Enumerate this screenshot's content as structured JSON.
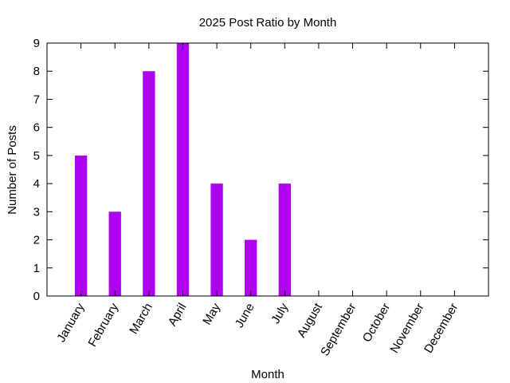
{
  "chart_data": {
    "type": "bar",
    "title": "2025 Post Ratio by Month",
    "xlabel": "Month",
    "ylabel": "Number of Posts",
    "categories": [
      "January",
      "February",
      "March",
      "April",
      "May",
      "June",
      "July",
      "August",
      "September",
      "October",
      "November",
      "December"
    ],
    "values": [
      5,
      3,
      8,
      9,
      4,
      2,
      4,
      0,
      0,
      0,
      0,
      0
    ],
    "ylim": [
      0,
      9
    ],
    "yticks": [
      0,
      1,
      2,
      3,
      4,
      5,
      6,
      7,
      8,
      9
    ],
    "grid": false,
    "legend": "none",
    "bar_color": "#b000f0"
  }
}
